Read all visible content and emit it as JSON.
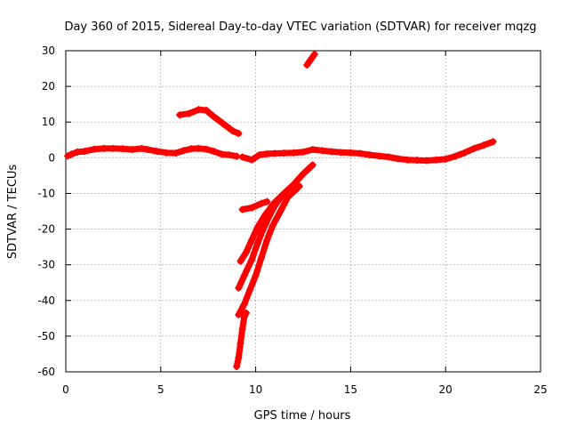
{
  "chart_data": {
    "type": "scatter",
    "title": "Day 360 of 2015, Sidereal Day-to-day VTEC variation (SDTVAR) for receiver mqzg",
    "xlabel": "GPS time / hours",
    "ylabel": "SDTVAR / TECUs",
    "xlim": [
      0,
      25
    ],
    "ylim": [
      -60,
      30
    ],
    "xticks": [
      0,
      5,
      10,
      15,
      20,
      25
    ],
    "yticks": [
      -60,
      -50,
      -40,
      -30,
      -20,
      -10,
      0,
      10,
      20,
      30
    ],
    "grid": true,
    "marker": "+",
    "color": "#ff0000",
    "series": [
      {
        "name": "main-near-zero",
        "points": [
          [
            0.1,
            0.5
          ],
          [
            0.3,
            1.0
          ],
          [
            0.6,
            1.6
          ],
          [
            1.0,
            1.8
          ],
          [
            1.5,
            2.4
          ],
          [
            2.0,
            2.6
          ],
          [
            2.5,
            2.6
          ],
          [
            3.0,
            2.5
          ],
          [
            3.5,
            2.3
          ],
          [
            4.0,
            2.6
          ],
          [
            4.3,
            2.3
          ],
          [
            4.8,
            1.8
          ],
          [
            5.3,
            1.4
          ],
          [
            5.8,
            1.3
          ],
          [
            6.2,
            2.0
          ],
          [
            6.6,
            2.5
          ],
          [
            7.0,
            2.6
          ],
          [
            7.4,
            2.4
          ],
          [
            7.8,
            1.8
          ],
          [
            8.2,
            1.0
          ],
          [
            8.6,
            0.8
          ],
          [
            9.0,
            0.4
          ]
        ]
      },
      {
        "name": "hump-6-9h",
        "points": [
          [
            6.0,
            12.0
          ],
          [
            6.5,
            12.4
          ],
          [
            7.0,
            13.5
          ],
          [
            7.4,
            13.3
          ],
          [
            7.8,
            11.5
          ],
          [
            8.3,
            9.5
          ],
          [
            8.8,
            7.5
          ],
          [
            9.1,
            6.8
          ]
        ]
      },
      {
        "name": "main-after-10h",
        "points": [
          [
            9.3,
            0.2
          ],
          [
            9.8,
            -0.6
          ],
          [
            10.2,
            0.8
          ],
          [
            10.6,
            1.1
          ],
          [
            11.0,
            1.2
          ],
          [
            11.5,
            1.3
          ],
          [
            12.0,
            1.4
          ],
          [
            12.5,
            1.6
          ],
          [
            13.0,
            2.3
          ],
          [
            13.5,
            2.0
          ],
          [
            14.0,
            1.7
          ],
          [
            14.5,
            1.5
          ],
          [
            15.0,
            1.4
          ],
          [
            15.5,
            1.2
          ],
          [
            16.0,
            0.8
          ],
          [
            16.5,
            0.5
          ],
          [
            17.0,
            0.2
          ],
          [
            17.5,
            -0.3
          ],
          [
            18.0,
            -0.6
          ],
          [
            18.5,
            -0.7
          ],
          [
            19.0,
            -0.8
          ],
          [
            19.5,
            -0.6
          ],
          [
            20.0,
            -0.4
          ],
          [
            20.5,
            0.4
          ],
          [
            21.0,
            1.4
          ],
          [
            21.5,
            2.6
          ],
          [
            22.0,
            3.5
          ],
          [
            22.5,
            4.5
          ]
        ]
      },
      {
        "name": "descending-arc-upper",
        "points": [
          [
            9.2,
            -29.0
          ],
          [
            9.5,
            -26.5
          ],
          [
            9.8,
            -23.0
          ],
          [
            10.1,
            -19.5
          ],
          [
            10.5,
            -16.0
          ],
          [
            11.0,
            -12.5
          ],
          [
            11.5,
            -10.0
          ],
          [
            12.0,
            -7.5
          ],
          [
            12.5,
            -4.5
          ],
          [
            13.0,
            -2.0
          ]
        ]
      },
      {
        "name": "descending-arc-middle",
        "points": [
          [
            9.1,
            -36.5
          ],
          [
            9.4,
            -33.0
          ],
          [
            9.8,
            -28.5
          ],
          [
            10.1,
            -24.0
          ],
          [
            10.4,
            -20.0
          ],
          [
            10.7,
            -16.5
          ],
          [
            11.0,
            -13.5
          ],
          [
            11.4,
            -10.5
          ],
          [
            11.8,
            -8.5
          ],
          [
            12.3,
            -8.0
          ]
        ]
      },
      {
        "name": "descending-arc-lower",
        "points": [
          [
            9.1,
            -44.0
          ],
          [
            9.4,
            -41.0
          ],
          [
            9.7,
            -37.0
          ],
          [
            10.0,
            -33.0
          ],
          [
            10.3,
            -28.0
          ],
          [
            10.6,
            -23.0
          ],
          [
            10.9,
            -19.0
          ],
          [
            11.3,
            -15.0
          ],
          [
            11.7,
            -11.0
          ],
          [
            12.2,
            -8.5
          ]
        ]
      },
      {
        "name": "short-segment-near-10h",
        "points": [
          [
            9.3,
            -14.5
          ],
          [
            9.8,
            -14.0
          ],
          [
            10.3,
            -12.8
          ],
          [
            10.6,
            -12.3
          ]
        ]
      },
      {
        "name": "plunge-near-9h",
        "points": [
          [
            9.0,
            -58.5
          ],
          [
            9.1,
            -56.0
          ],
          [
            9.2,
            -52.0
          ],
          [
            9.3,
            -48.0
          ],
          [
            9.4,
            -44.5
          ],
          [
            9.5,
            -43.5
          ]
        ]
      },
      {
        "name": "top-short-segment",
        "points": [
          [
            12.7,
            26.0
          ],
          [
            12.9,
            27.5
          ],
          [
            13.1,
            29.0
          ]
        ]
      }
    ]
  }
}
